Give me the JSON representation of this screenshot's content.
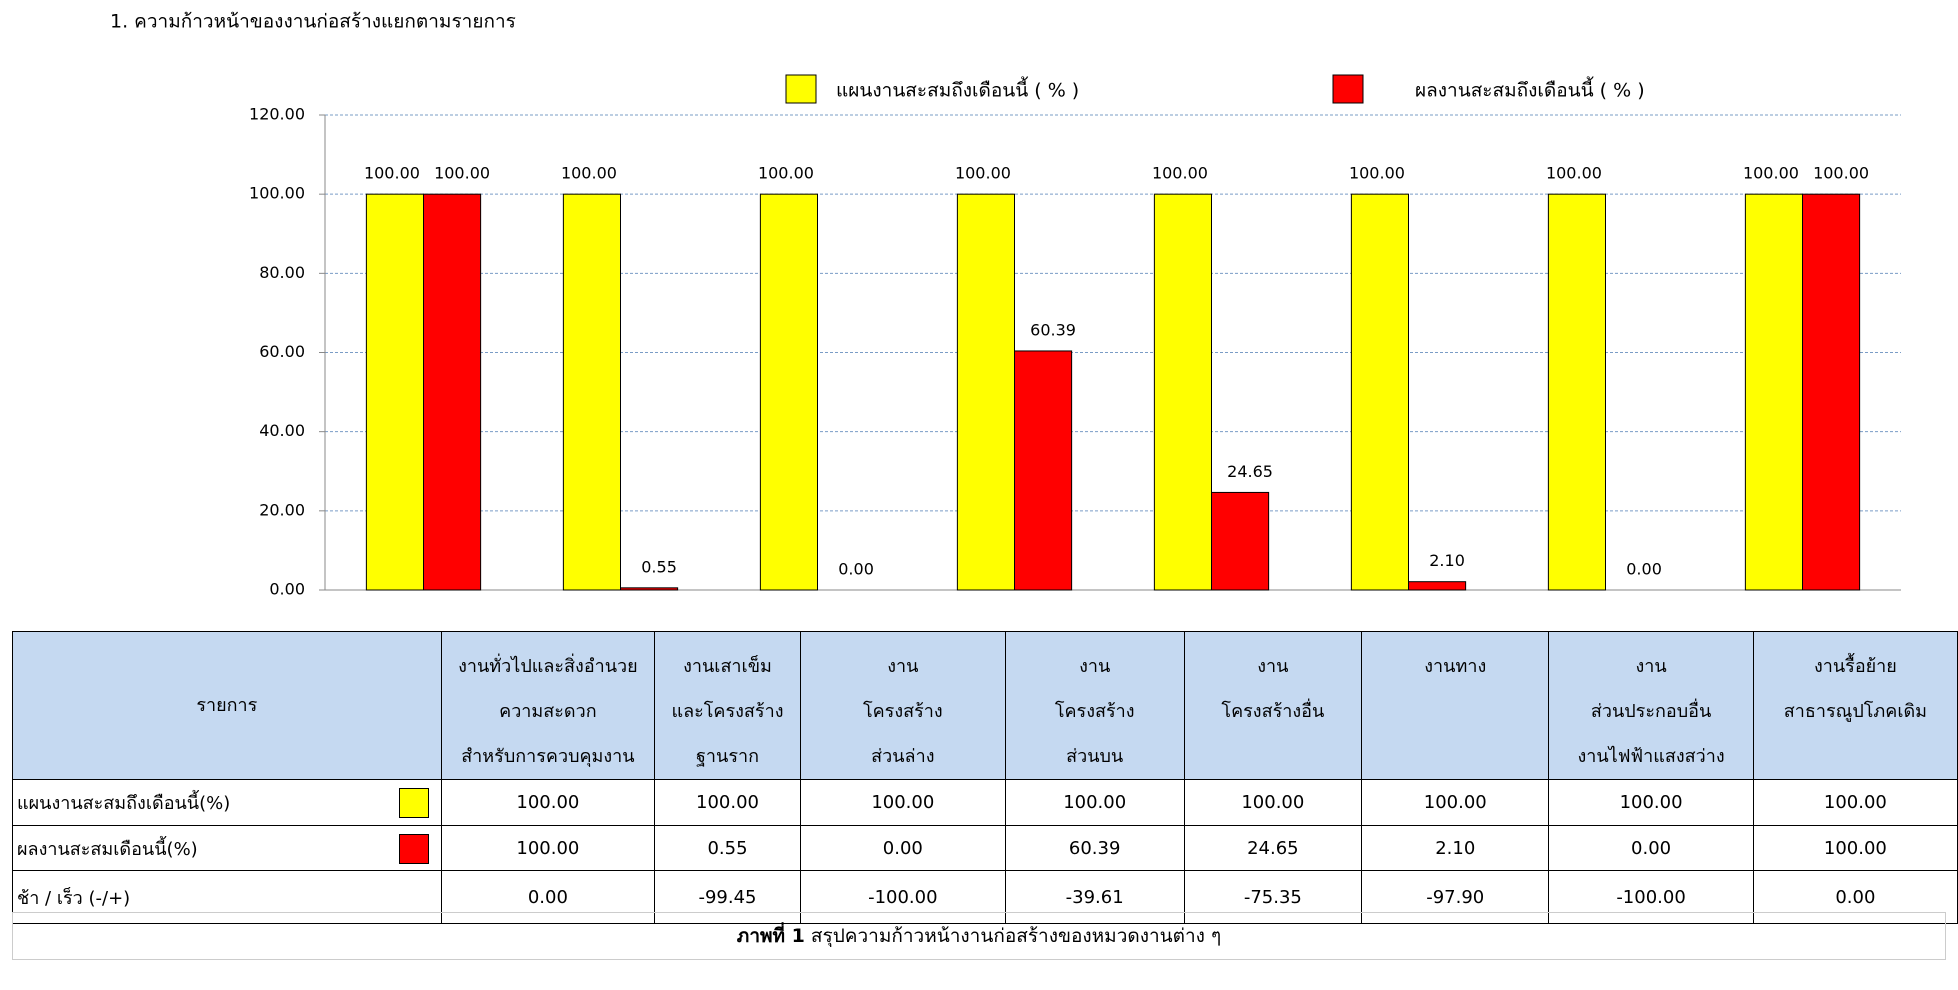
{
  "header": {
    "title": "1. ความก้าวหน้าของงานก่อสร้างแยกตามรายการ"
  },
  "chart_data": {
    "type": "bar",
    "categories": [
      "งานทั่วไปและสิ่งอำนวย\nความสะดวก\nสำหรับการควบคุมงาน",
      "งานเสาเข็ม\nและโครงสร้าง\nฐานราก",
      "งาน\nโครงสร้าง\nส่วนล่าง",
      "งาน\nโครงสร้าง\nส่วนบน",
      "งาน\nโครงสร้างอื่น",
      "งานทาง",
      "งาน\nส่วนประกอบอื่น\nงานไฟฟ้าแสงสว่าง",
      "งานรื้อย้าย\nสาธารณูปโภคเดิม"
    ],
    "series": [
      {
        "name": "แผนงานสะสมถึงเดือนนี้ ( % )",
        "color": "#ffff00",
        "values": [
          100,
          100,
          100,
          100,
          100,
          100,
          100,
          100
        ],
        "value_labels": [
          "100.00",
          "100.00",
          "100.00",
          "100.00",
          "100.00",
          "100.00",
          "100.00",
          "100.00"
        ]
      },
      {
        "name": "ผลงานสะสมถึงเดือนนี้ ( % )",
        "color": "#ff0000",
        "values": [
          100,
          0.55,
          0,
          60.39,
          24.65,
          2.1,
          0,
          100
        ],
        "value_labels": [
          "100.00",
          "0.55",
          "0.00",
          "60.39",
          "24.65",
          "2.10",
          "0.00",
          "100.00"
        ]
      }
    ],
    "ylim": [
      0,
      120
    ],
    "yticks": [
      {
        "value": 0,
        "label": "0.00"
      },
      {
        "value": 20,
        "label": "20.00"
      },
      {
        "value": 40,
        "label": "40.00"
      },
      {
        "value": 60,
        "label": "60.00"
      },
      {
        "value": 80,
        "label": "80.00"
      },
      {
        "value": 100,
        "label": "100.00"
      },
      {
        "value": 120,
        "label": "120.00"
      }
    ],
    "grid": true,
    "legend": "top"
  },
  "table": {
    "row_header": "รายการ",
    "row_labels": [
      "แผนงานสะสมถึงเดือนนี้(%)",
      "ผลงานสะสมเดือนนี้(%)",
      "ช้า / เร็ว  (-/+)"
    ],
    "diff": [
      "0.00",
      "-99.45",
      "-100.00",
      "-39.61",
      "-75.35",
      "-97.90",
      "-100.00",
      "0.00"
    ],
    "caption": {
      "label": "ภาพที่ 1",
      "text": "สรุปความก้าวหน้างานก่อสร้างของหมวดงานต่าง ๆ"
    }
  }
}
